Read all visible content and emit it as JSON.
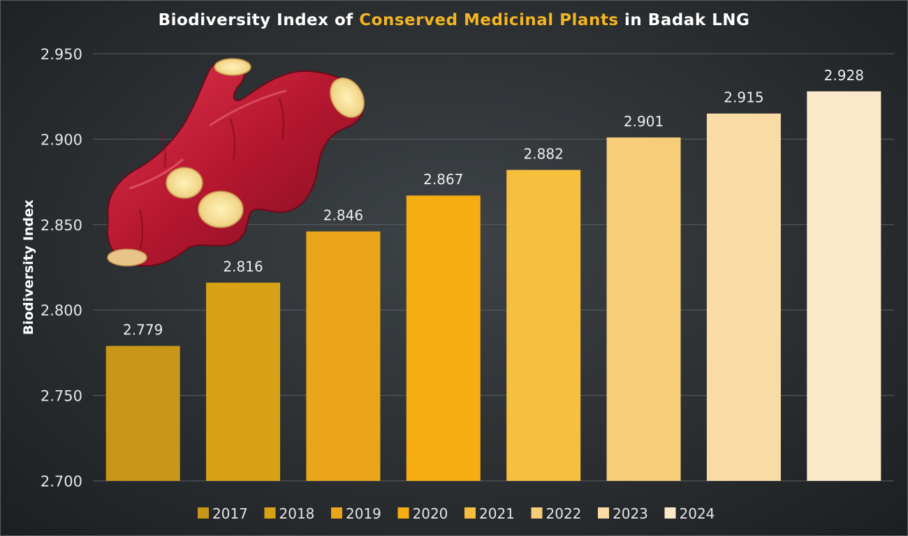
{
  "title": {
    "part1": "Biodiversity Index of ",
    "highlight": "Conserved Medicinal Plants",
    "part2": " in Badak LNG"
  },
  "colors": {
    "highlight": "#f3b521",
    "grid": "#5c6064",
    "bars": [
      "#c89618",
      "#d9a116",
      "#eaa51a",
      "#f5ad12",
      "#f6bf3e",
      "#f7cd7a",
      "#f9dba5",
      "#fbe8c8"
    ]
  },
  "decoration": {
    "image": "red-ginger-rhizome"
  },
  "chart_data": {
    "type": "bar",
    "title": "Biodiversity Index of Conserved Medicinal Plants in Badak LNG",
    "xlabel": "",
    "ylabel": "Biodiversity Index",
    "categories": [
      "2017",
      "2018",
      "2019",
      "2020",
      "2021",
      "2022",
      "2023",
      "2024"
    ],
    "values": [
      2.779,
      2.816,
      2.846,
      2.867,
      2.882,
      2.901,
      2.915,
      2.928
    ],
    "value_labels": [
      "2.779",
      "2.816",
      "2.846",
      "2.867",
      "2.882",
      "2.901",
      "2.915",
      "2.928"
    ],
    "ylim": [
      2.7,
      2.95
    ],
    "yticks": [
      2.7,
      2.75,
      2.8,
      2.85,
      2.9,
      2.95
    ],
    "ytick_labels": [
      "2.700",
      "2.750",
      "2.800",
      "2.850",
      "2.900",
      "2.950"
    ],
    "grid": true,
    "legend": {
      "position": "bottom",
      "entries": [
        "2017",
        "2018",
        "2019",
        "2020",
        "2021",
        "2022",
        "2023",
        "2024"
      ]
    }
  }
}
